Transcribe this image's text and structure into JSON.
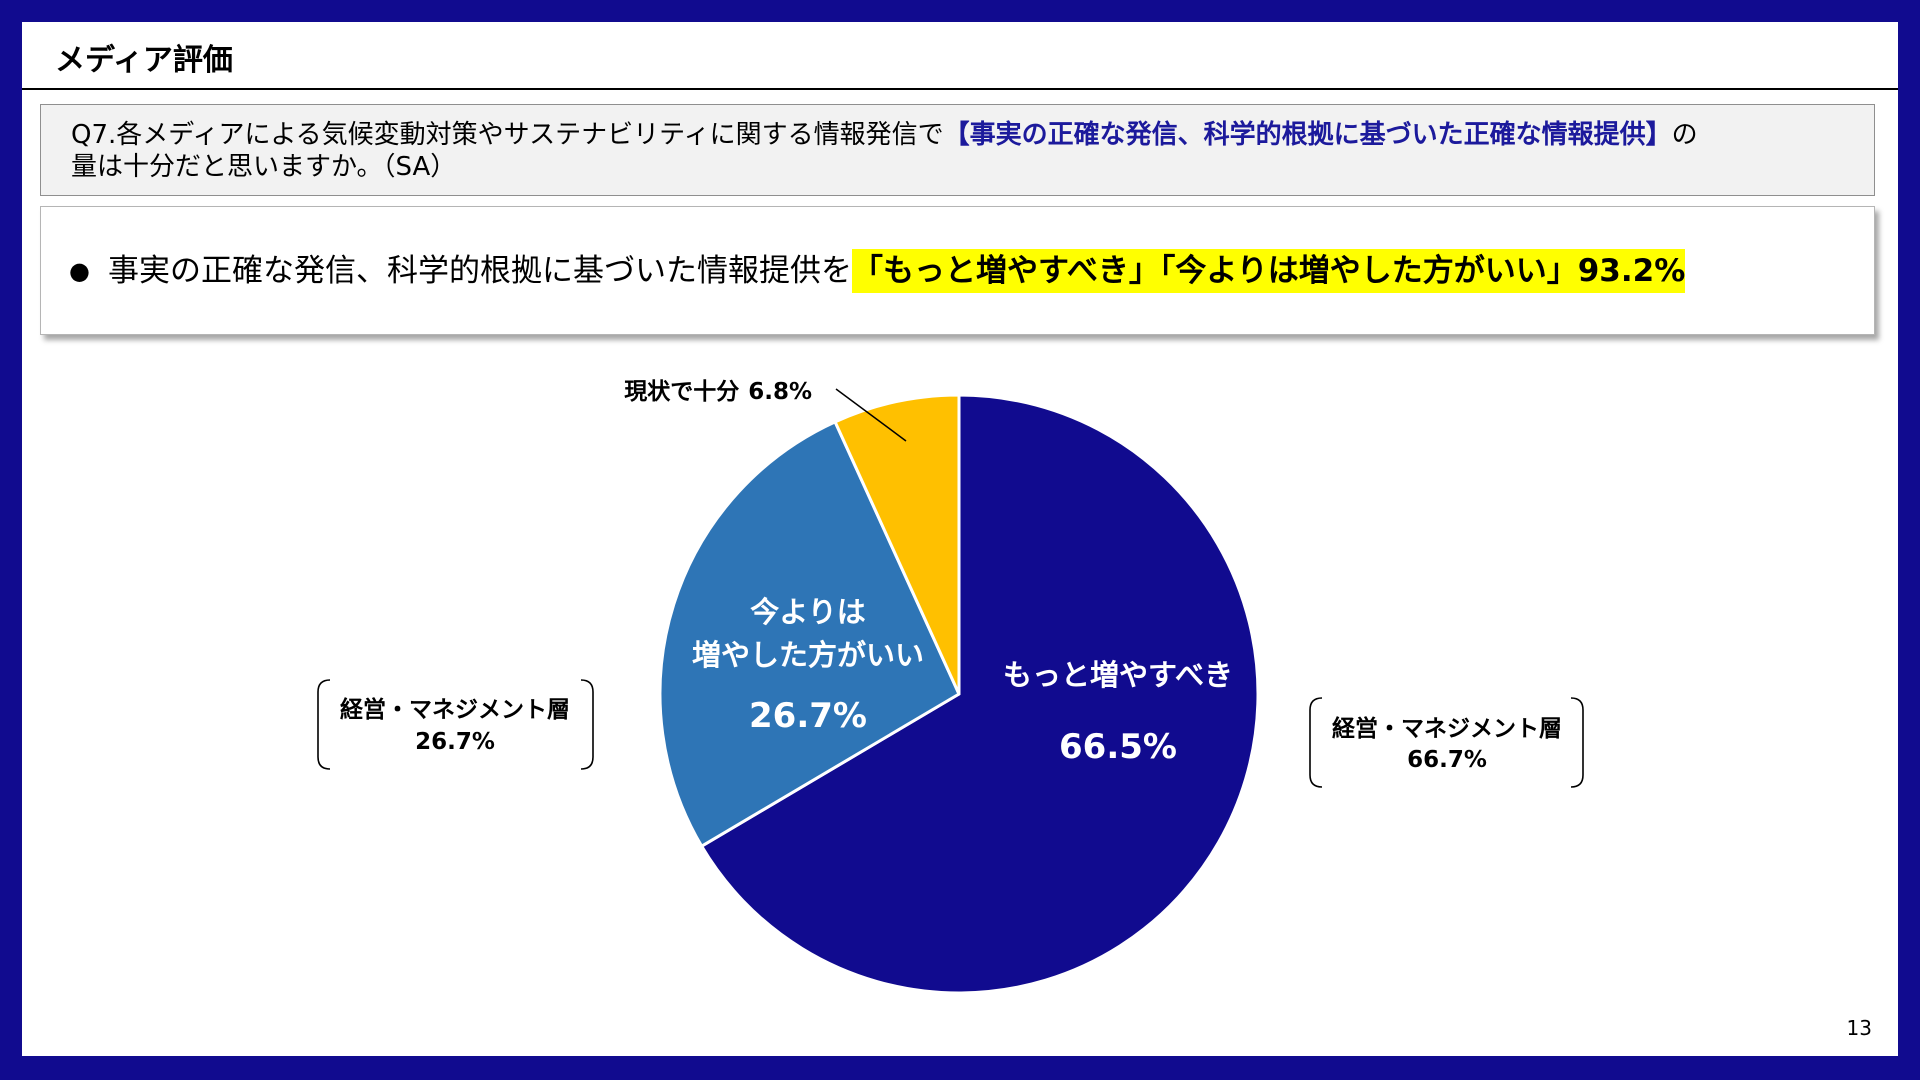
{
  "colors": {
    "frame": "#110b8f",
    "question_background": "#f2f2f2",
    "question_emphasis": "#1c1a9c",
    "summary_highlight": "#ffff00"
  },
  "header": {
    "title": "メディア評価"
  },
  "question": {
    "lead": "Q7.各メディアによる気候変動対策やサステナビリティに関する情報発信で",
    "emphasis": "【事実の正確な発信、科学的根拠に基づいた正確な情報提供】",
    "tail": "の",
    "line2": "量は十分だと思いますか。（SA）"
  },
  "summary": {
    "bullet": "●",
    "text": "事実の正確な発信、科学的根拠に基づいた情報提供を",
    "highlight": "「もっと増やすべき」「今よりは増やした方がいい」93.2%"
  },
  "chart_data": {
    "type": "pie",
    "start": "top",
    "direction": "clockwise",
    "slices": [
      {
        "label_lines": [
          "もっと増やすべき"
        ],
        "value": 66.5,
        "value_label": "66.5%",
        "color": "#110b8f"
      },
      {
        "label_lines": [
          "今よりは",
          "増やした方がいい"
        ],
        "value": 26.7,
        "value_label": "26.7%",
        "color": "#2e75b6"
      },
      {
        "label_lines": [
          "現状で十分"
        ],
        "value": 6.8,
        "value_label": "6.8%",
        "color": "#ffc000"
      }
    ],
    "annotations": [
      {
        "side": "left",
        "group": "経営・マネジメント層",
        "value_label": "26.7%"
      },
      {
        "side": "right",
        "group": "経営・マネジメント層",
        "value_label": "66.7%"
      }
    ]
  },
  "footer": {
    "page_number": "13"
  }
}
